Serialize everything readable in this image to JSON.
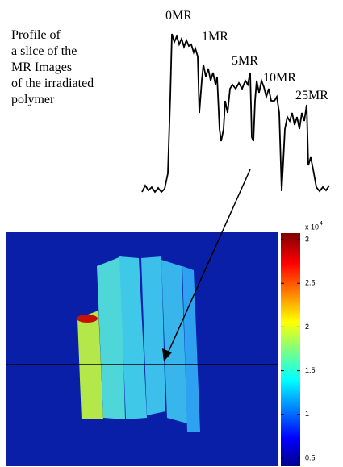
{
  "caption": [
    "Profile of",
    "a slice of the",
    "MR Images",
    "of the irradiated",
    "polymer"
  ],
  "profile_labels": [
    "0MR",
    "1MR",
    "5MR",
    "10MR",
    "25MR"
  ],
  "colorbar": {
    "exponent_base": "x 10",
    "exponent": "4",
    "ticks": [
      "0.5",
      "1",
      "1.5",
      "2",
      "2.5",
      "3"
    ]
  }
}
